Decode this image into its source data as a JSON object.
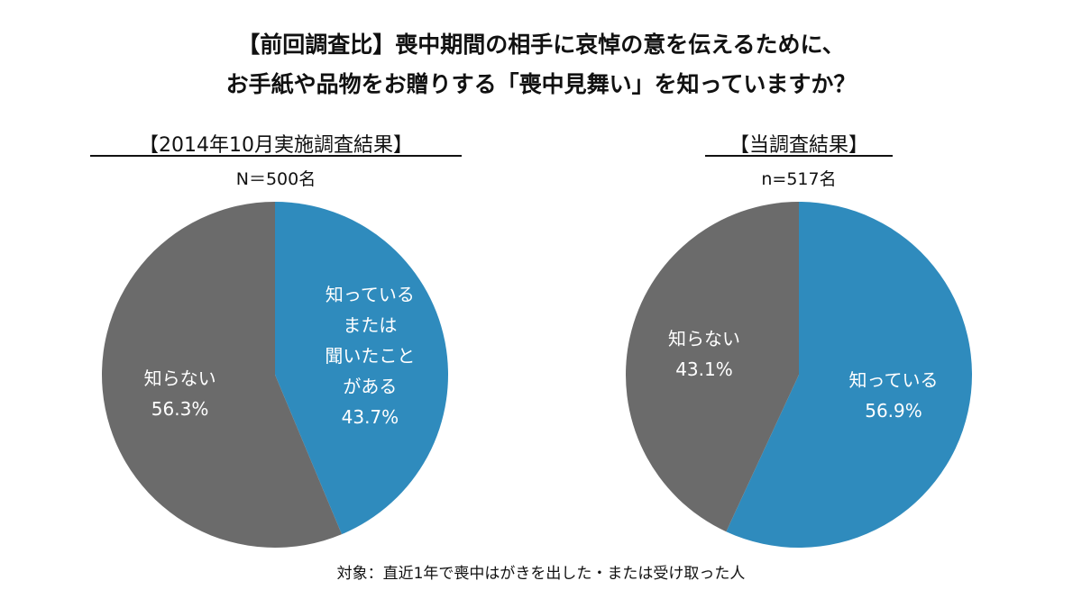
{
  "title_line1": "【前回調査比】喪中期間の相手に哀悼の意を伝えるために、",
  "title_line2": "お手紙や品物をお贈りする「喪中見舞い」を知っていますか？",
  "footnote": "対象：直近1年で喪中はがきを出した・または受け取った人",
  "colors": {
    "known": "#2f8bbd",
    "unknown": "#6b6b6b"
  },
  "chart_data": [
    {
      "type": "pie",
      "title": "【2014年10月実施調査結果】",
      "sample": "N＝500名",
      "slices": [
        {
          "label": "知っている\nまたは\n聞いたこと\nがある",
          "value": 43.7,
          "value_label": "43.7%",
          "color": "#2f8bbd"
        },
        {
          "label": "知らない",
          "value": 56.3,
          "value_label": "56.3%",
          "color": "#6b6b6b"
        }
      ]
    },
    {
      "type": "pie",
      "title": "【当調査結果】",
      "sample": "n=517名",
      "slices": [
        {
          "label": "知っている",
          "value": 56.9,
          "value_label": "56.9%",
          "color": "#2f8bbd"
        },
        {
          "label": "知らない",
          "value": 43.1,
          "value_label": "43.1%",
          "color": "#6b6b6b"
        }
      ]
    }
  ]
}
